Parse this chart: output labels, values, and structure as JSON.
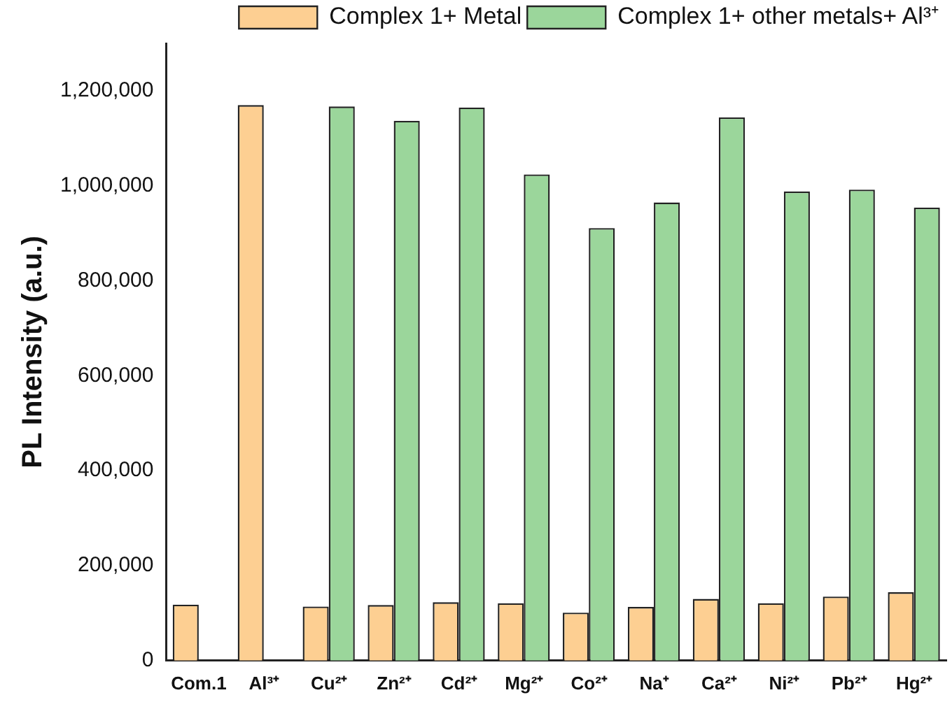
{
  "chart_data": {
    "type": "bar",
    "ylabel": "PL Intensity (a.u.)",
    "categories": [
      "Com.1",
      "Al³⁺",
      "Cu²⁺",
      "Zn²⁺",
      "Cd²⁺",
      "Mg²⁺",
      "Co²⁺",
      "Na⁺",
      "Ca²⁺",
      "Ni²⁺",
      "Pb²⁺",
      "Hg²⁺"
    ],
    "series": [
      {
        "name": "Complex 1+ Metal",
        "color": "#fdcf92",
        "values": [
          118000,
          1170000,
          114000,
          117000,
          123000,
          121000,
          101000,
          113000,
          130000,
          121000,
          135000,
          144000
        ]
      },
      {
        "name": "Complex 1+ other metals+ Al³⁺",
        "color": "#9bd69b",
        "values": [
          null,
          null,
          1167000,
          1137000,
          1165000,
          1024000,
          911000,
          965000,
          1144000,
          988000,
          992000,
          954000
        ]
      }
    ],
    "ylim": [
      0,
      1300000
    ],
    "yticks": [
      {
        "value": 0,
        "label": "0"
      },
      {
        "value": 200000,
        "label": "200,000"
      },
      {
        "value": 400000,
        "label": "400,000"
      },
      {
        "value": 600000,
        "label": "600,000"
      },
      {
        "value": 800000,
        "label": "800,000"
      },
      {
        "value": 1000000,
        "label": "1,000,000"
      },
      {
        "value": 1200000,
        "label": "1,200,000"
      }
    ],
    "grid": false,
    "legend": "top right"
  }
}
